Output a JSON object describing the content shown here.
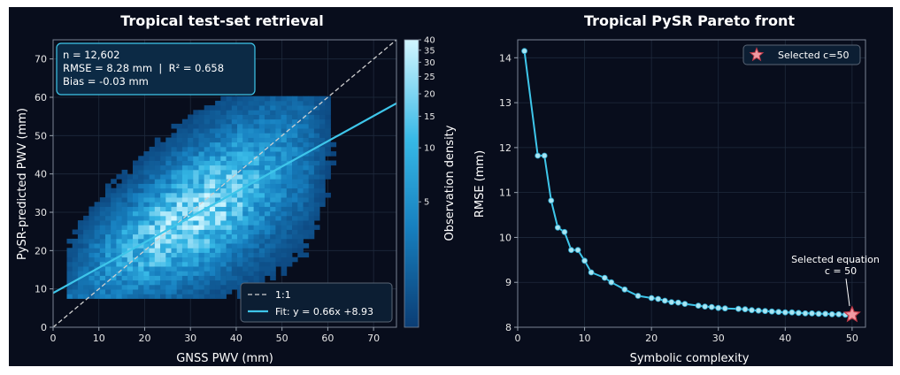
{
  "chart_data": [
    {
      "type": "heatmap",
      "title": "Tropical test-set retrieval",
      "xlabel": "GNSS PWV (mm)",
      "ylabel": "PySR-predicted PWV (mm)",
      "xlim": [
        0,
        75
      ],
      "ylim": [
        0,
        75
      ],
      "xticks": [
        0,
        10,
        20,
        30,
        40,
        50,
        60,
        70
      ],
      "yticks": [
        0,
        10,
        20,
        30,
        40,
        50,
        60,
        70
      ],
      "grid": true,
      "stats": {
        "n": "n = 12,602",
        "rmse_r2": "RMSE = 8.28 mm  |  R² = 0.658",
        "bias": "Bias = -0.03 mm"
      },
      "legend": {
        "placement": "lower-right",
        "items": [
          "1:1",
          "Fit: y = 0.66x +8.93"
        ]
      },
      "identity_line": [
        [
          0,
          0
        ],
        [
          75,
          75
        ]
      ],
      "fit": {
        "slope": 0.66,
        "intercept": 8.93
      },
      "colorbar": {
        "label": "Observation density",
        "min": 1,
        "max": 40,
        "ticks": [
          5,
          10,
          15,
          20,
          25,
          30,
          35,
          40
        ]
      },
      "colors": {
        "background": "#080d1c",
        "fit_line": "#3ec6ea",
        "identity_line": "#d0d0d0",
        "low_density": "#0b3d74",
        "high_density": "#c8f2ff"
      }
    },
    {
      "type": "line",
      "title": "Tropical PySR Pareto front",
      "xlabel": "Symbolic complexity",
      "ylabel": "RMSE (mm)",
      "xlim": [
        0,
        52
      ],
      "ylim": [
        8,
        14.4
      ],
      "xticks": [
        0,
        10,
        20,
        30,
        40,
        50
      ],
      "yticks": [
        8,
        9,
        10,
        11,
        12,
        13,
        14
      ],
      "grid": true,
      "series": [
        {
          "x": [
            1,
            3,
            4,
            5,
            6,
            7,
            8,
            9,
            10,
            11,
            13,
            14,
            16,
            18,
            20,
            21,
            22,
            23,
            24,
            25,
            27,
            28,
            29,
            30,
            31,
            33,
            34,
            35,
            36,
            37,
            38,
            39,
            40,
            41,
            42,
            43,
            44,
            45,
            46,
            47,
            48,
            49,
            50
          ],
          "y": [
            14.15,
            11.82,
            11.82,
            10.82,
            10.22,
            10.12,
            9.72,
            9.72,
            9.48,
            9.22,
            9.1,
            9.0,
            8.84,
            8.7,
            8.65,
            8.63,
            8.59,
            8.56,
            8.55,
            8.52,
            8.48,
            8.46,
            8.45,
            8.43,
            8.42,
            8.41,
            8.4,
            8.38,
            8.37,
            8.36,
            8.35,
            8.34,
            8.33,
            8.33,
            8.32,
            8.31,
            8.31,
            8.3,
            8.3,
            8.29,
            8.29,
            8.28,
            8.28
          ]
        }
      ],
      "selected": {
        "x": 50,
        "y": 8.28
      },
      "legend": {
        "placement": "top-right",
        "items": [
          "Selected c=50"
        ]
      },
      "annotation": {
        "line1": "Selected equation",
        "line2": "c = 50"
      },
      "colors": {
        "background": "#080d1c",
        "line": "#3ec6ea",
        "marker": "#a9e4f2",
        "star": "#f09aa3",
        "star_edge": "#c03a48"
      }
    }
  ]
}
